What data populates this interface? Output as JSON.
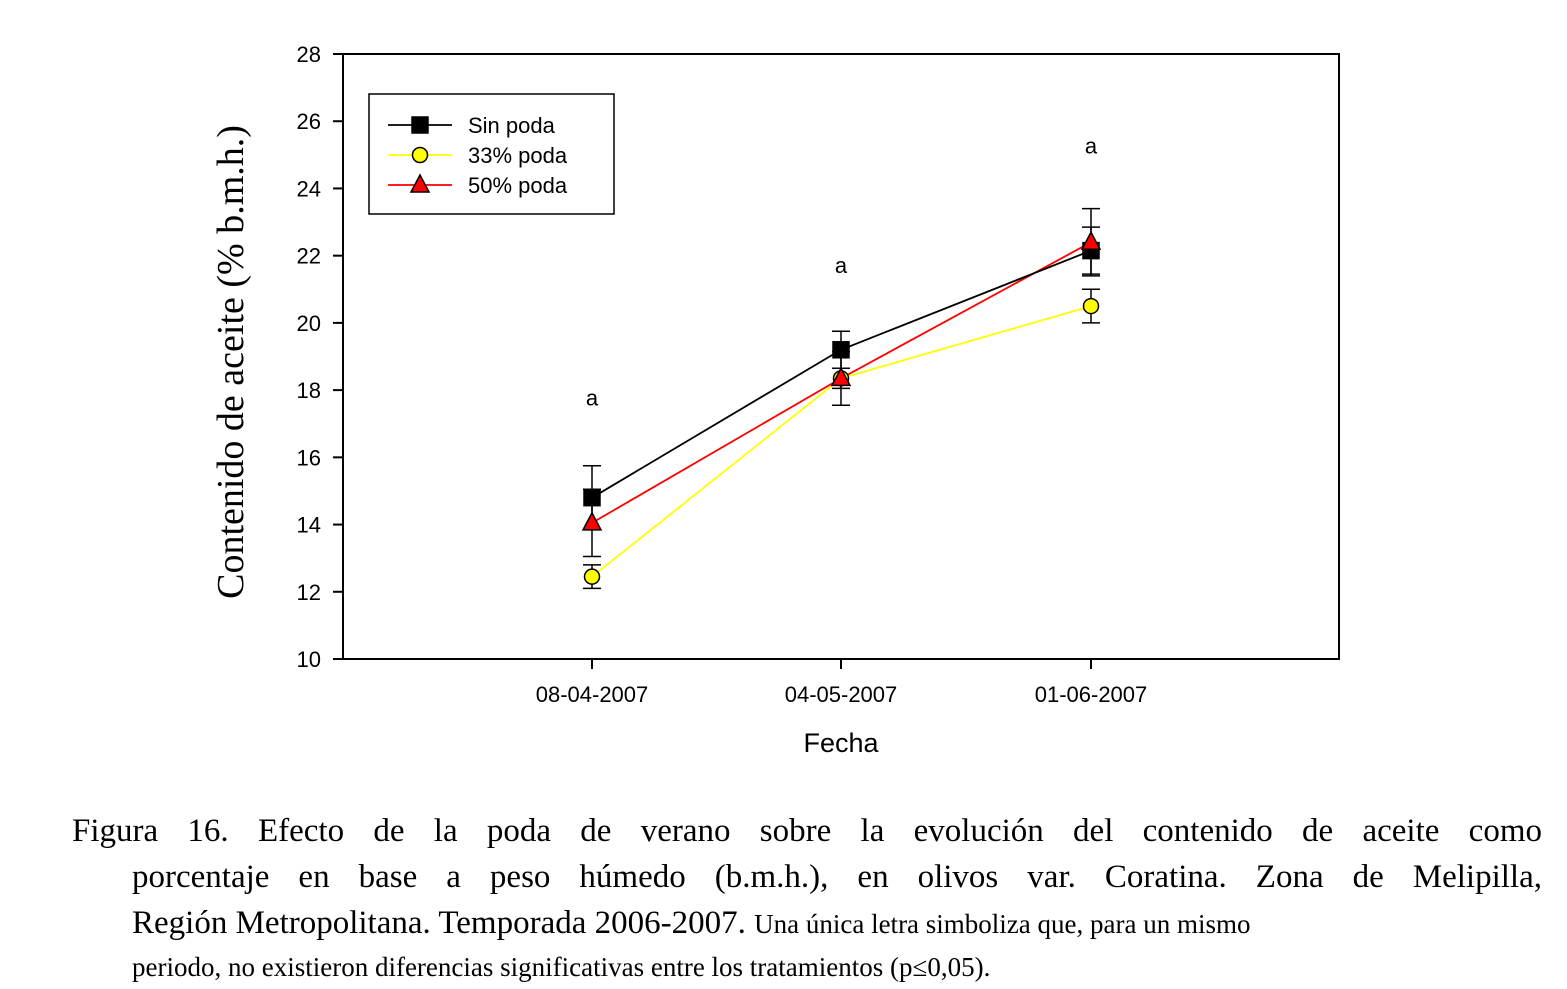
{
  "chart_data": {
    "type": "line",
    "title": "",
    "xlabel": "Fecha",
    "ylabel": "Contenido de aceite (% b.m.h.)",
    "categories": [
      "08-04-2007",
      "04-05-2007",
      "01-06-2007"
    ],
    "ylim": [
      10,
      28
    ],
    "yticks": [
      10,
      12,
      14,
      16,
      18,
      20,
      22,
      24,
      26,
      28
    ],
    "grid": false,
    "legend_position": "top-left",
    "series": [
      {
        "name": "Sin poda",
        "marker": "square",
        "marker_color": "#000000",
        "line_color": "#000000",
        "values": [
          14.8,
          19.2,
          22.15
        ],
        "error": [
          0.95,
          0.55,
          0.7
        ]
      },
      {
        "name": "33% poda",
        "marker": "circle",
        "marker_color": "#ffff00",
        "line_color": "#ffff00",
        "values": [
          12.45,
          18.35,
          20.5
        ],
        "error": [
          0.35,
          0.3,
          0.5
        ]
      },
      {
        "name": "50% poda",
        "marker": "triangle",
        "marker_color": "#ff0000",
        "line_color": "#ff0000",
        "values": [
          14.05,
          18.35,
          22.4
        ],
        "error": [
          1.0,
          0.8,
          1.0
        ]
      }
    ],
    "annotations": [
      {
        "category": "08-04-2007",
        "text": "a",
        "y": 17.75
      },
      {
        "category": "04-05-2007",
        "text": "a",
        "y": 21.7
      },
      {
        "category": "01-06-2007",
        "text": "a",
        "y": 25.25
      }
    ]
  },
  "caption": {
    "line1": "Figura 16. Efecto de la poda de verano sobre la evolución del contenido de aceite como",
    "line2": "porcentaje en base a peso húmedo (b.m.h.), en olivos var. Coratina. Zona de Melipilla,",
    "line3_main": "Región Metropolitana. Temporada 2006-2007.",
    "line3_small": "Una única letra simboliza que, para un mismo",
    "line4": "periodo, no existieron diferencias significativas entre los tratamientos (p≤0,05)."
  }
}
